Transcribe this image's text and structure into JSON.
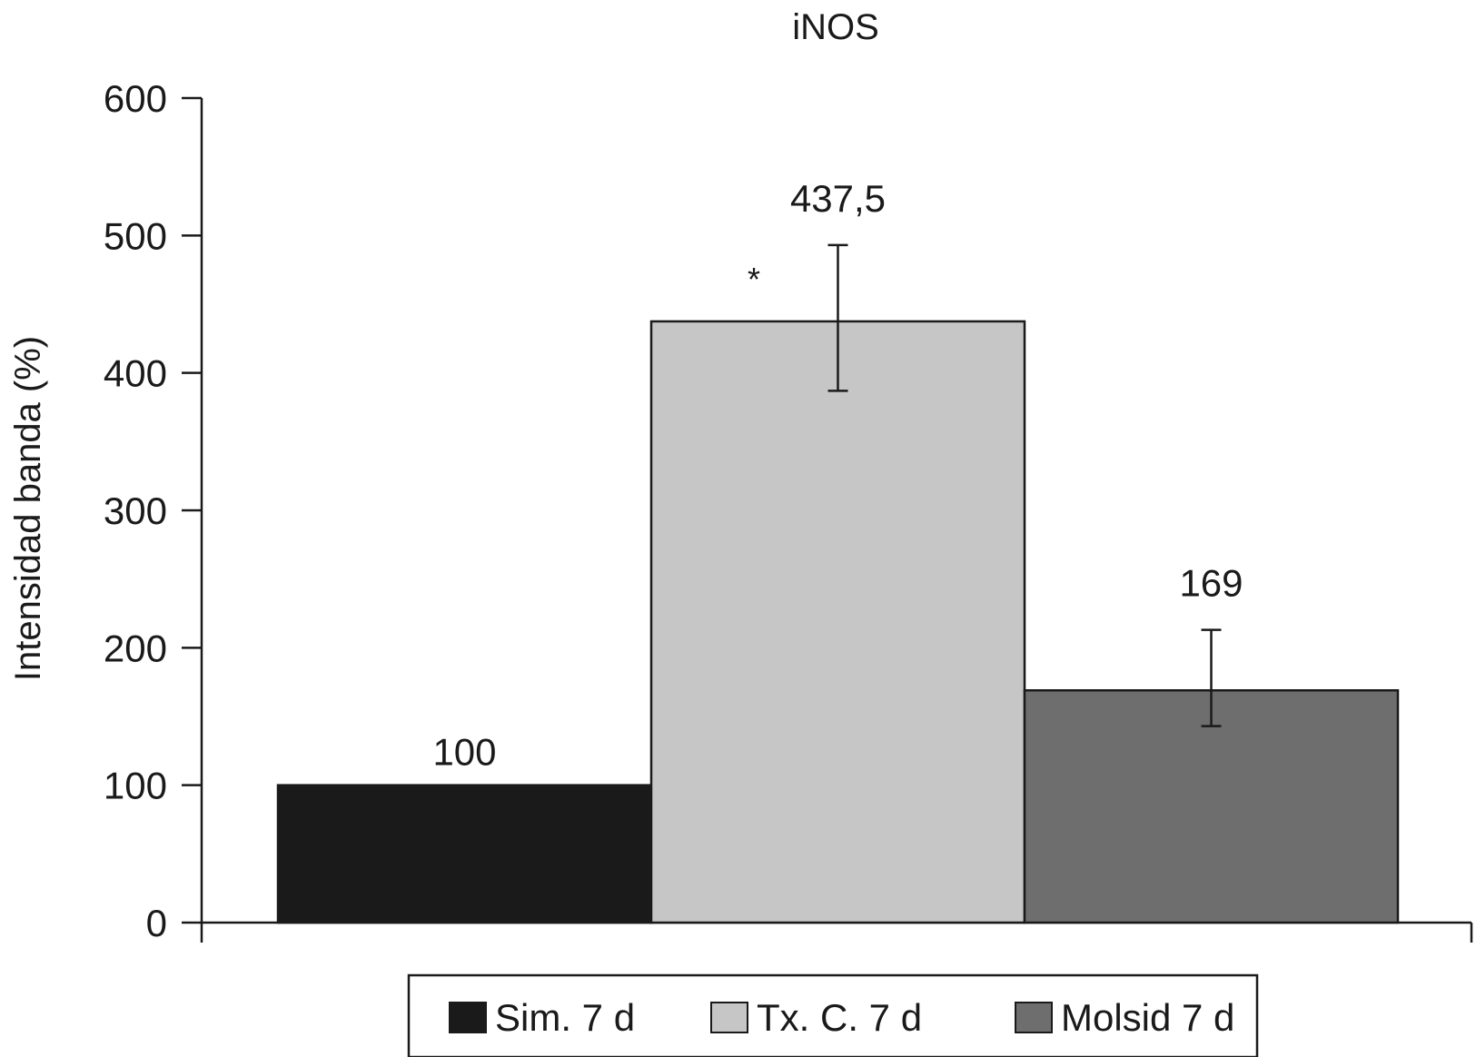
{
  "chart_data": {
    "type": "bar",
    "title": "iNOS",
    "xlabel": "",
    "ylabel": "Intensidad banda (%)",
    "ylim": [
      0,
      600
    ],
    "yticks": [
      0,
      100,
      200,
      300,
      400,
      500,
      600
    ],
    "categories": [
      "Sim. 7 d",
      "Tx. C. 7 d",
      "Molsid 7 d"
    ],
    "values": [
      100,
      437.5,
      169
    ],
    "value_labels": [
      "100",
      "437,5",
      "169"
    ],
    "error_bars": [
      null,
      [
        387,
        493
      ],
      [
        143,
        213
      ]
    ],
    "significance": [
      "",
      "*",
      ""
    ],
    "colors": [
      "#1a1a1a",
      "#c6c6c6",
      "#6e6e6e"
    ],
    "legend": {
      "position": "bottom",
      "entries": [
        "Sim. 7 d",
        "Tx. C. 7 d",
        "Molsid 7 d"
      ]
    },
    "grid": false
  }
}
